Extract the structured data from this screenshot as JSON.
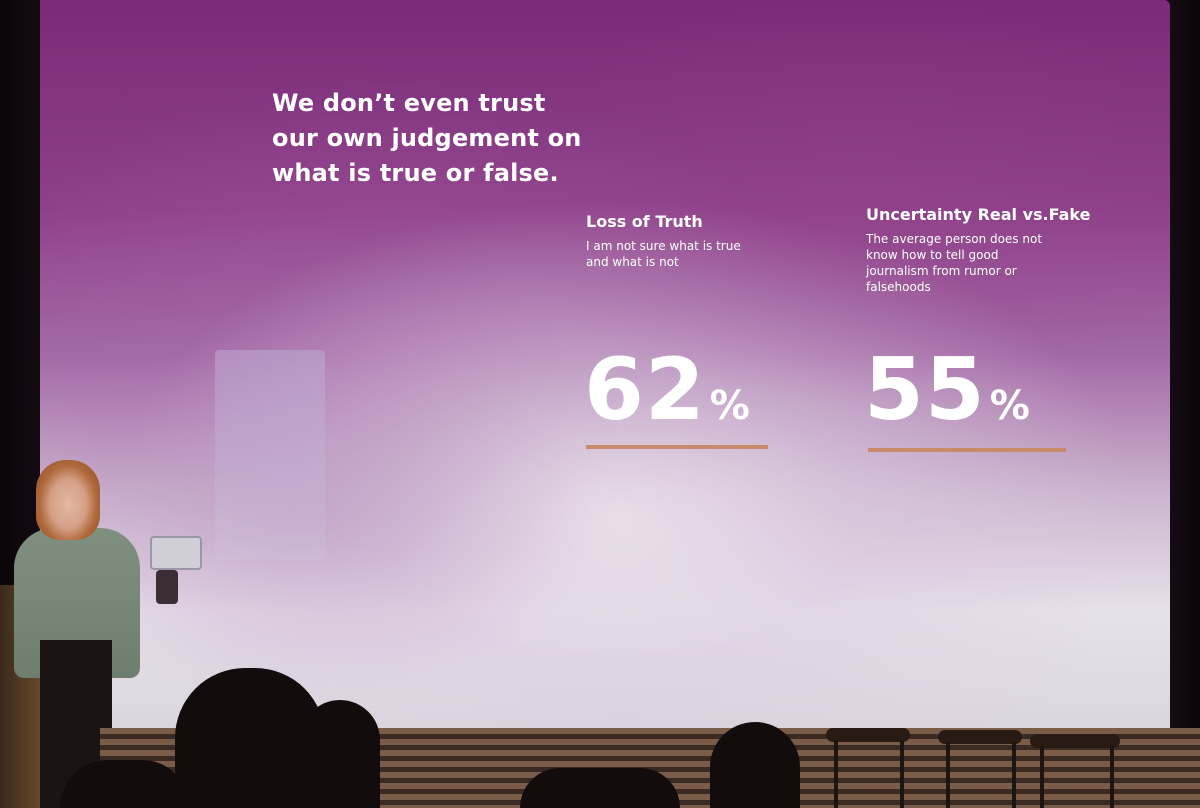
{
  "slide": {
    "title": "We don’t even trust our own judgement on what is true or false.",
    "stats": [
      {
        "heading": "Loss of Truth",
        "description": "I am not sure what is true and what is not",
        "value": "62",
        "unit": "%"
      },
      {
        "heading": "Uncertainty Real vs.Fake",
        "description": "The average person does not know how to tell good journalism from rumor or falsehoods",
        "value": "55",
        "unit": "%"
      }
    ]
  },
  "colors": {
    "slide_purple": "#7a2a78",
    "slide_haze": "#e7e1e9",
    "underline_accent": "#c98a6a",
    "text": "#ffffff"
  }
}
